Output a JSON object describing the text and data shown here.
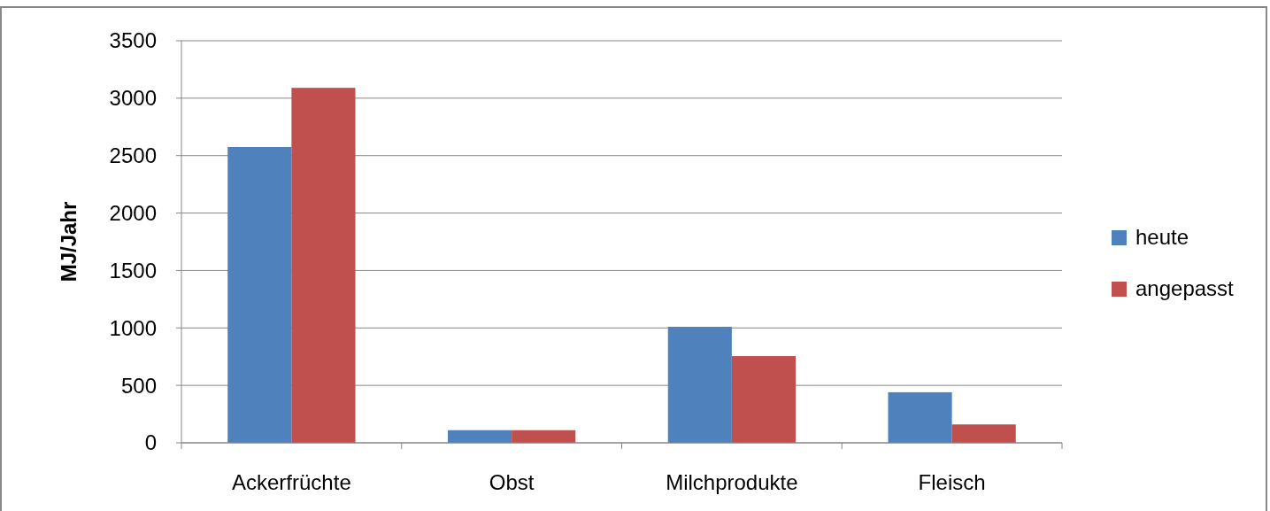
{
  "chart_data": {
    "type": "bar",
    "ylabel": "MJ/Jahr",
    "categories": [
      "Ackerfrüchte",
      "Obst",
      "Milchprodukte",
      "Fleisch"
    ],
    "series": [
      {
        "name": "heute",
        "color": "#4f81bd",
        "values": [
          2575,
          110,
          1010,
          440
        ]
      },
      {
        "name": "angepasst",
        "color": "#c0504d",
        "values": [
          3090,
          110,
          755,
          160
        ]
      }
    ],
    "ylim": [
      0,
      3500
    ],
    "yticks": [
      0,
      500,
      1000,
      1500,
      2000,
      2500,
      3000,
      3500
    ],
    "grid": "y",
    "legend": "right"
  }
}
